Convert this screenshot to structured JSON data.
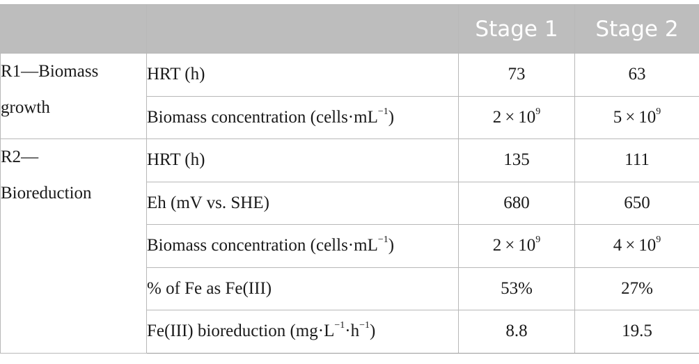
{
  "header": {
    "col1": "",
    "col2": "",
    "stage1": "Stage 1",
    "stage2": "Stage 2"
  },
  "reactors": [
    {
      "label_line1": "R1—Biomass",
      "label_line2": "growth",
      "rows": [
        {
          "param": "HRT (h)",
          "stage1": "73",
          "stage2": "63"
        },
        {
          "param_base": "Biomass concentration (cells·mL",
          "param_sup": "−1",
          "param_tail": ")",
          "stage1_base": "2 × 10",
          "stage1_sup": "9",
          "stage2_base": "5 × 10",
          "stage2_sup": "9"
        }
      ]
    },
    {
      "label_line1": "R2—",
      "label_line2": "Bioreduction",
      "rows": [
        {
          "param": "HRT (h)",
          "stage1": "135",
          "stage2": "111"
        },
        {
          "param": "Eh (mV vs. SHE)",
          "stage1": "680",
          "stage2": "650"
        },
        {
          "param_base": "Biomass concentration (cells·mL",
          "param_sup": "−1",
          "param_tail": ")",
          "stage1_base": "2 × 10",
          "stage1_sup": "9",
          "stage2_base": "4 × 10",
          "stage2_sup": "9"
        },
        {
          "param": "% of Fe as Fe(III)",
          "stage1": "53%",
          "stage2": "27%"
        },
        {
          "param_base": "Fe(III) bioreduction (mg·L",
          "param_sup": "−1",
          "param_mid": "·h",
          "param_sup2": "−1",
          "param_tail": ")",
          "stage1": "8.8",
          "stage2": "19.5"
        }
      ]
    }
  ]
}
